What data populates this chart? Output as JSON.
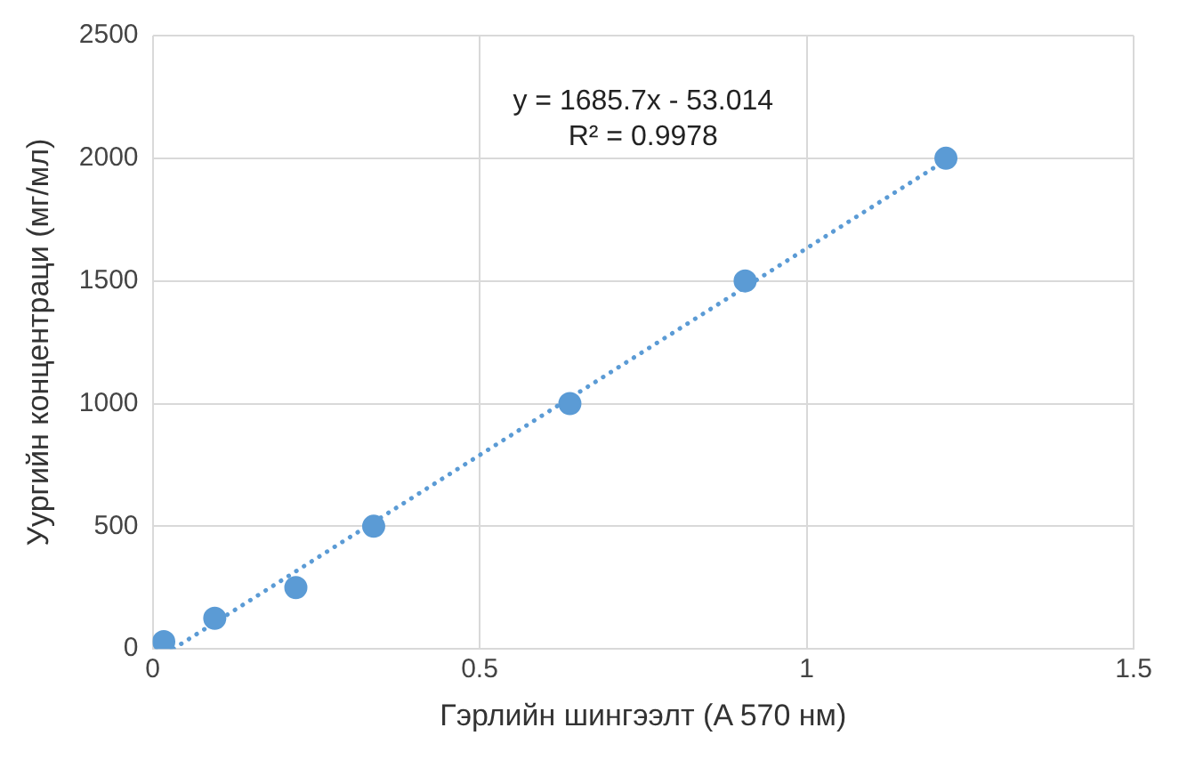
{
  "chart_data": {
    "type": "scatter",
    "xlabel": "Гэрлийн шингээлт (A 570 нм)",
    "ylabel": "Уургийн концентраци (мг/мл)",
    "series": [
      {
        "color": "#5b9bd5",
        "x": [
          0.017,
          0.095,
          0.219,
          0.338,
          0.638,
          0.906,
          1.213
        ],
        "values": [
          30,
          125,
          250,
          500,
          1000,
          1500,
          2000
        ],
        "marker": "circle"
      },
      {
        "type": "line",
        "color": "#5b9bd5",
        "x": [
          0.032,
          1.22
        ],
        "values": [
          1,
          2004
        ],
        "line_style": "dotted",
        "marker": "none"
      }
    ],
    "annotations": [
      "y = 1685.7x - 53.014",
      "R² = 0.9978"
    ],
    "xlim": [
      0,
      1.5
    ],
    "xticks": [
      0,
      0.5,
      1,
      1.5
    ],
    "ylim": [
      0,
      2500
    ],
    "yticks": [
      0,
      500,
      1000,
      1500,
      2000,
      2500
    ],
    "grid": true,
    "legend": false
  }
}
